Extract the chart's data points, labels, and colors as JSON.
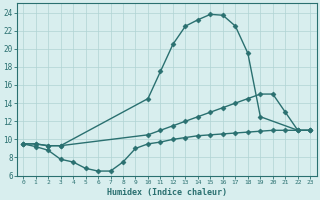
{
  "line1_x": [
    0,
    1,
    2,
    3,
    10,
    11,
    12,
    13,
    14,
    15,
    16,
    17,
    18,
    19,
    22,
    23
  ],
  "line1_y": [
    9.5,
    9.5,
    9.3,
    9.3,
    14.5,
    17.5,
    20.5,
    22.5,
    23.2,
    23.8,
    23.7,
    22.5,
    19.5,
    12.5,
    11.0,
    11.0
  ],
  "line2_x": [
    0,
    1,
    2,
    3,
    10,
    11,
    12,
    13,
    14,
    15,
    16,
    17,
    18,
    19,
    20,
    21,
    22,
    23
  ],
  "line2_y": [
    9.5,
    9.5,
    9.3,
    9.3,
    10.5,
    11.0,
    11.5,
    12.0,
    12.5,
    13.0,
    13.5,
    14.0,
    14.5,
    15.0,
    15.0,
    13.0,
    11.0,
    11.0
  ],
  "line3_x": [
    0,
    1,
    2,
    3,
    4,
    5,
    6,
    7,
    8,
    9,
    10,
    11,
    12,
    13,
    14,
    15,
    16,
    17,
    18,
    19,
    20,
    21,
    22,
    23
  ],
  "line3_y": [
    9.5,
    9.2,
    8.8,
    7.8,
    7.5,
    6.8,
    6.5,
    6.5,
    7.5,
    9.0,
    9.5,
    9.7,
    10.0,
    10.2,
    10.4,
    10.5,
    10.6,
    10.7,
    10.8,
    10.9,
    11.0,
    11.0,
    11.0,
    11.0
  ],
  "color": "#2a7070",
  "bg_color": "#d8eeee",
  "grid_color": "#b0d4d4",
  "xlabel": "Humidex (Indice chaleur)",
  "xlim": [
    -0.5,
    23.5
  ],
  "ylim": [
    6,
    25
  ],
  "xticks": [
    0,
    1,
    2,
    3,
    4,
    5,
    6,
    7,
    8,
    9,
    10,
    11,
    12,
    13,
    14,
    15,
    16,
    17,
    18,
    19,
    20,
    21,
    22,
    23
  ],
  "yticks": [
    6,
    8,
    10,
    12,
    14,
    16,
    18,
    20,
    22,
    24
  ],
  "markersize": 2.5,
  "linewidth": 1.0
}
